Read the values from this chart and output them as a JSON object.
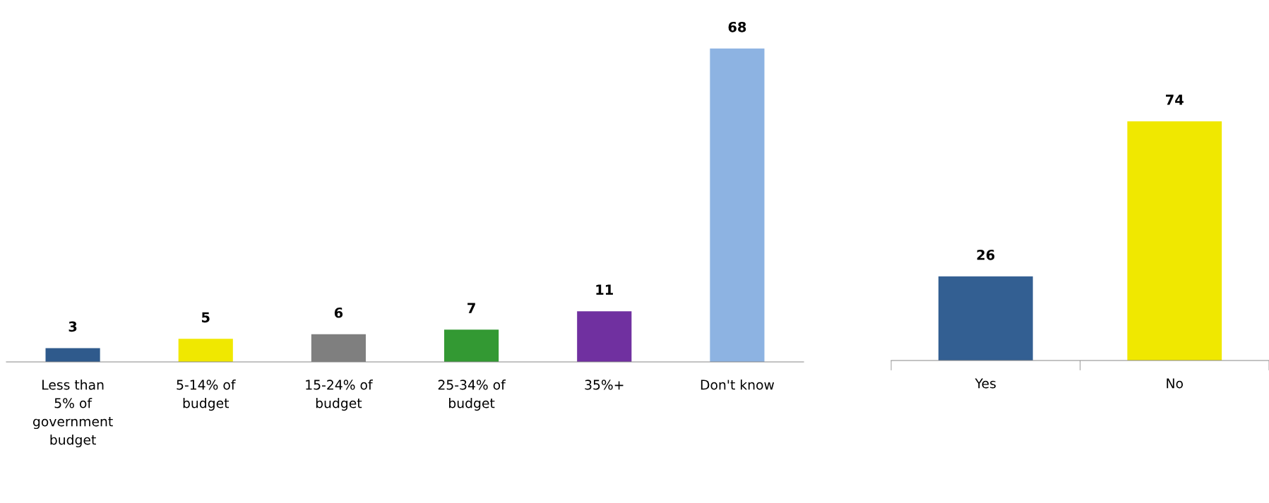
{
  "chart_data": [
    {
      "type": "bar",
      "categories": [
        "Less than\n5% of\ngovernment\nbudget",
        "5-14% of\nbudget",
        "15-24% of\nbudget",
        "25-34% of\nbudget",
        "35%+",
        "Don't know"
      ],
      "values": [
        3,
        5,
        6,
        7,
        11,
        68
      ],
      "colors": [
        "#2f5a8c",
        "#f0e800",
        "#7f7f7f",
        "#339933",
        "#7030a0",
        "#8db3e2"
      ],
      "data_labels": true,
      "tick_labels": "x"
    },
    {
      "type": "bar",
      "categories": [
        "Yes",
        "No"
      ],
      "values": [
        26,
        74
      ],
      "colors": [
        "#335f92",
        "#f0e800"
      ],
      "data_labels": true,
      "tick_labels": "x"
    }
  ]
}
